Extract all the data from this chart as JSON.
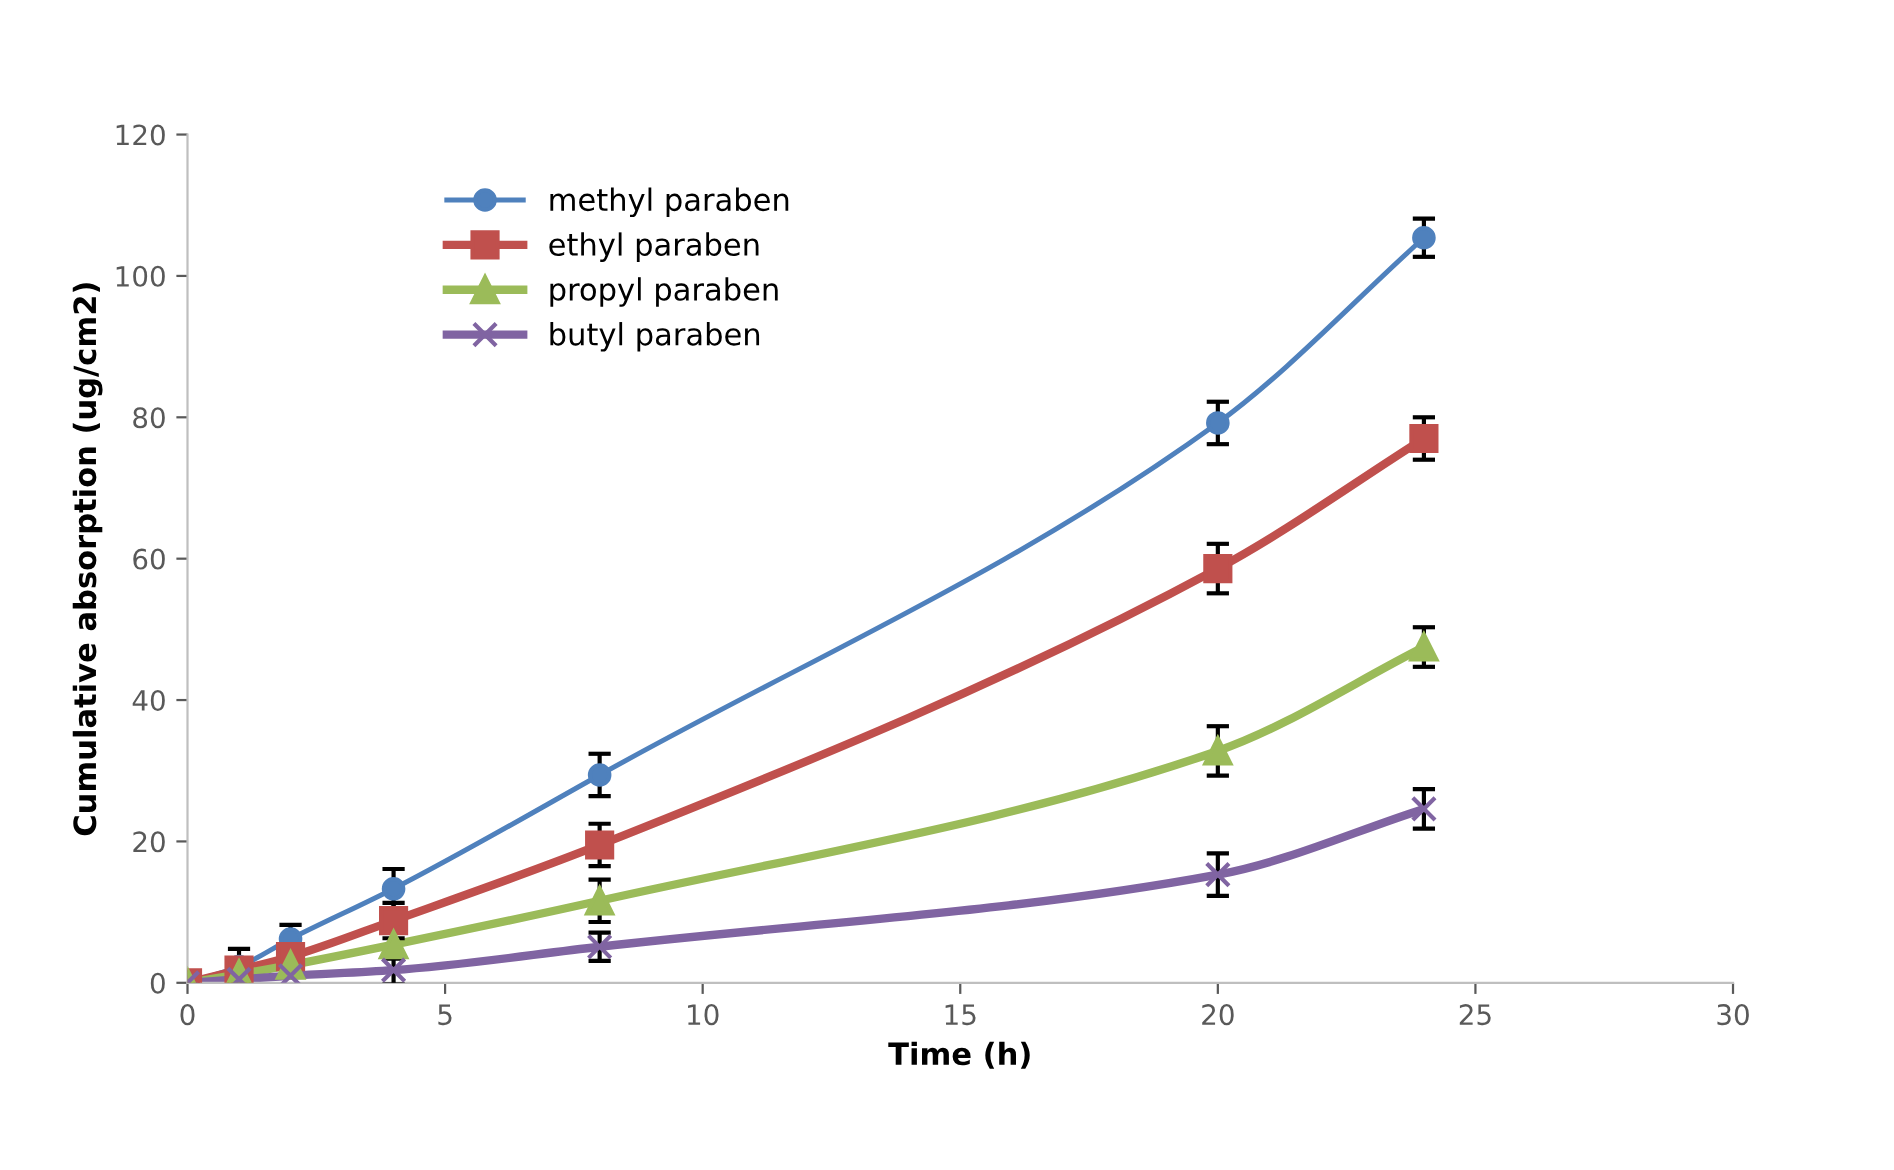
{
  "chart_data": {
    "type": "line",
    "xlabel": "Time (h)",
    "ylabel": "Cumulative absorption (ug/cm2)",
    "x": [
      0,
      1,
      2,
      4,
      8,
      20,
      24
    ],
    "series": [
      {
        "name": "methyl paraben",
        "color": "#4f81bd",
        "marker": "circle",
        "values": [
          0,
          2.3,
          6.2,
          13.3,
          29.4,
          79.2,
          105.4
        ],
        "errors": [
          null,
          2.5,
          2,
          2.8,
          3,
          3,
          2.7
        ]
      },
      {
        "name": "ethyl paraben",
        "color": "#c0504d",
        "marker": "square",
        "values": [
          0,
          1.8,
          3.7,
          8.8,
          19.5,
          58.6,
          77
        ],
        "errors": [
          null,
          null,
          null,
          2.5,
          3,
          3.5,
          3
        ]
      },
      {
        "name": "propyl paraben",
        "color": "#9bbb59",
        "marker": "triangle",
        "values": [
          0,
          1.2,
          2.5,
          5.4,
          11.6,
          32.8,
          47.5
        ],
        "errors": [
          null,
          null,
          null,
          2,
          3,
          3.5,
          2.8
        ]
      },
      {
        "name": "butyl paraben",
        "color": "#8064a2",
        "marker": "cross",
        "values": [
          0,
          0.5,
          1,
          1.8,
          5.1,
          15.3,
          24.6
        ],
        "errors": [
          null,
          null,
          null,
          2,
          2,
          3,
          2.8
        ]
      }
    ],
    "xlim": [
      0,
      30
    ],
    "xticks": [
      0,
      5,
      10,
      15,
      20,
      25,
      30
    ],
    "ylim": [
      0,
      120
    ],
    "yticks": [
      0,
      20,
      40,
      60,
      80,
      100,
      120
    ],
    "legend": "top left",
    "grid": false
  }
}
